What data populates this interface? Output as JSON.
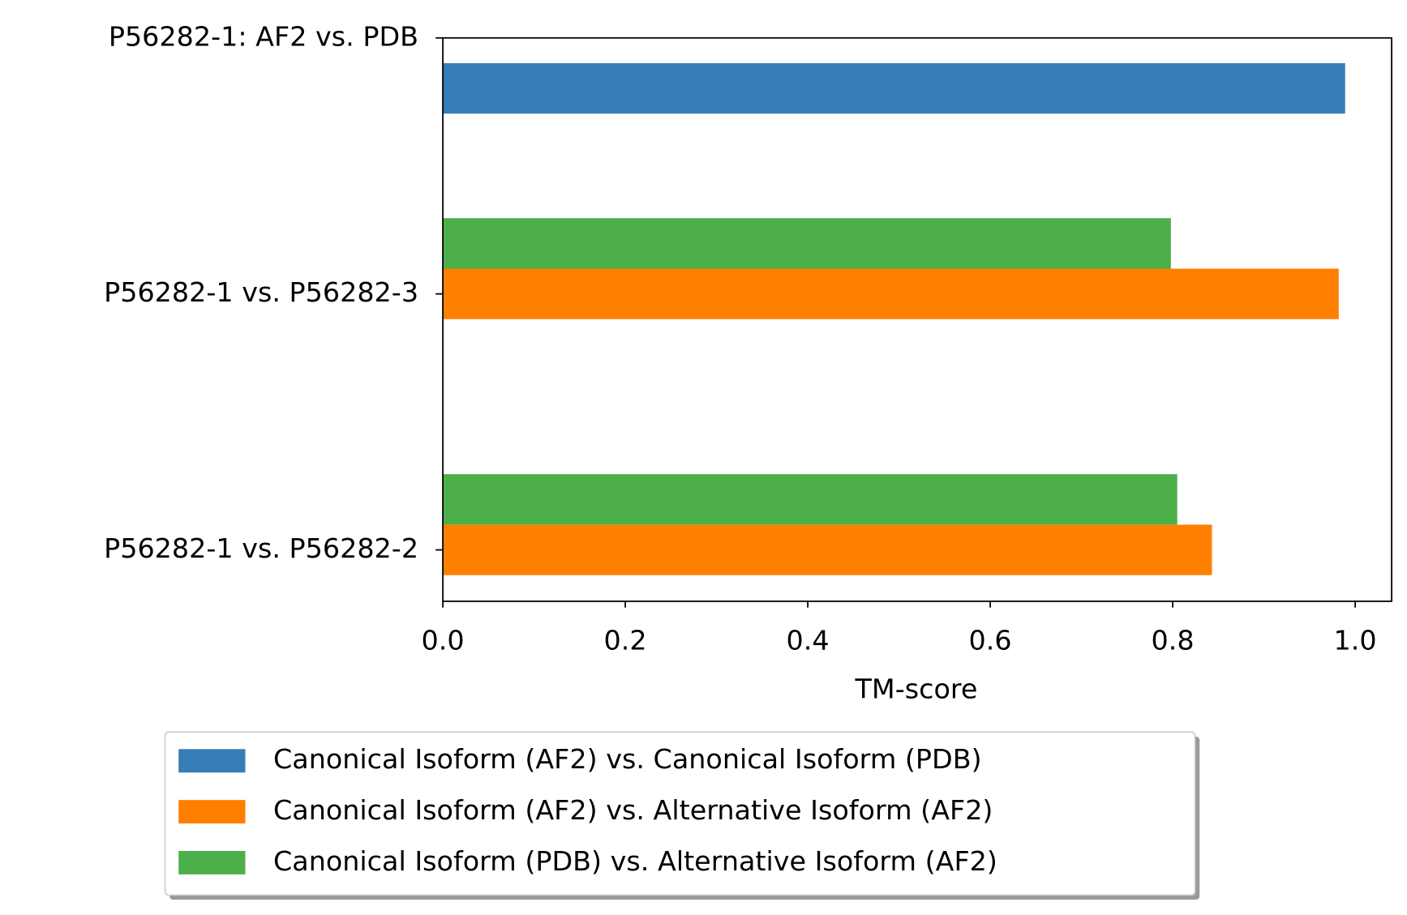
{
  "chart_data": {
    "type": "barh",
    "xlabel": "TM-score",
    "categories": [
      "P56282-1 vs. P56282-2",
      "P56282-1 vs. P56282-3",
      "P56282-1: AF2 vs. PDB"
    ],
    "series": [
      {
        "name": "Canonical Isoform (AF2) vs. Canonical Isoform (PDB)",
        "color": "#377eb8",
        "values": [
          null,
          null,
          0.989
        ]
      },
      {
        "name": "Canonical Isoform (AF2) vs. Alternative Isoform (AF2)",
        "color": "#ff7f00",
        "values": [
          0.843,
          0.982,
          null
        ]
      },
      {
        "name": "Canonical Isoform (PDB) vs. Alternative Isoform (AF2)",
        "color": "#4daf4a",
        "values": [
          0.805,
          0.798,
          null
        ]
      }
    ],
    "xlim": [
      0,
      1.04
    ],
    "xticks": [
      {
        "value": 0,
        "label": "0.0"
      },
      0.2,
      0.4,
      0.6,
      0.8,
      {
        "value": 1,
        "label": "1.0"
      }
    ],
    "legend": "below",
    "grid": false
  }
}
